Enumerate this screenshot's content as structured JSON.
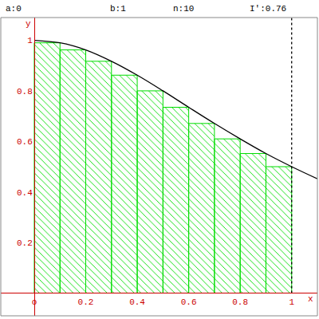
{
  "chart_data": {
    "type": "bar",
    "annotations": [
      "a:0",
      "b:1",
      "n:10",
      "I':0.76"
    ],
    "xlabel": "x",
    "ylabel": "y",
    "xlim": [
      -0.13,
      1.1
    ],
    "ylim": [
      -0.09,
      1.09
    ],
    "xticks": [
      {
        "value": 0,
        "label": "o"
      },
      0.2,
      0.4,
      0.6,
      0.8,
      1
    ],
    "yticks": [
      0.2,
      0.4,
      0.6,
      0.8,
      1
    ],
    "grid": false,
    "series": [
      {
        "type": "bar",
        "marker": "hatch",
        "color": "#00dd00",
        "bins": [
          0,
          0.1,
          0.2,
          0.3,
          0.4,
          0.5,
          0.6,
          0.7,
          0.8,
          0.9,
          1
        ],
        "values": [
          0.99,
          0.962,
          0.917,
          0.862,
          0.8,
          0.735,
          0.671,
          0.61,
          0.552,
          0.5
        ]
      },
      {
        "type": "line",
        "color": "#000000",
        "line_style": "solid",
        "x": [
          0,
          0.1,
          0.2,
          0.3,
          0.4,
          0.5,
          0.6,
          0.7,
          0.8,
          0.9,
          1,
          1.1
        ],
        "values": [
          1,
          0.99,
          0.962,
          0.917,
          0.862,
          0.8,
          0.735,
          0.671,
          0.61,
          0.552,
          0.5,
          0.452
        ]
      },
      {
        "type": "line",
        "color": "#000000",
        "line_style": "dot",
        "x": [
          1,
          1
        ],
        "values": [
          0,
          1.09
        ]
      }
    ]
  }
}
